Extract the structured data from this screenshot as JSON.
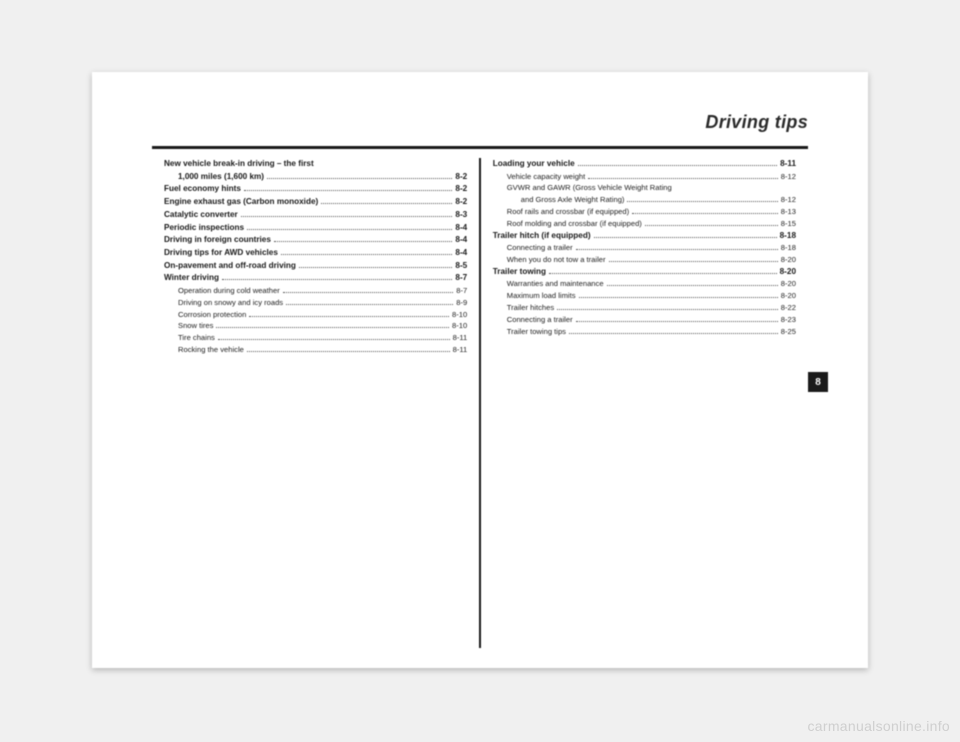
{
  "header": {
    "title": "Driving tips"
  },
  "sideTab": "8",
  "watermark": "carmanualsonline.info",
  "leftCol": [
    {
      "label": "New vehicle break-in driving – the first",
      "page": "",
      "cls": "",
      "nodots": true
    },
    {
      "label": "1,000 miles (1,600 km)",
      "page": "8-2",
      "cls": "wrap2"
    },
    {
      "label": "Fuel economy hints",
      "page": "8-2",
      "cls": ""
    },
    {
      "label": "Engine exhaust gas (Carbon monoxide)",
      "page": "8-2",
      "cls": ""
    },
    {
      "label": "Catalytic converter",
      "page": "8-3",
      "cls": ""
    },
    {
      "label": "Periodic inspections",
      "page": "8-4",
      "cls": ""
    },
    {
      "label": "Driving in foreign countries",
      "page": "8-4",
      "cls": ""
    },
    {
      "label": "Driving tips for AWD vehicles",
      "page": "8-4",
      "cls": ""
    },
    {
      "label": "On-pavement and off-road driving",
      "page": "8-5",
      "cls": ""
    },
    {
      "label": "Winter driving",
      "page": "8-7",
      "cls": ""
    },
    {
      "label": "Operation during cold weather",
      "page": "8-7",
      "cls": "sub"
    },
    {
      "label": "Driving on snowy and icy roads",
      "page": "8-9",
      "cls": "sub"
    },
    {
      "label": "Corrosion protection",
      "page": "8-10",
      "cls": "sub"
    },
    {
      "label": "Snow tires",
      "page": "8-10",
      "cls": "sub"
    },
    {
      "label": "Tire chains",
      "page": "8-11",
      "cls": "sub"
    },
    {
      "label": "Rocking the vehicle",
      "page": "8-11",
      "cls": "sub"
    }
  ],
  "rightCol": [
    {
      "label": "Loading your vehicle",
      "page": "8-11",
      "cls": ""
    },
    {
      "label": "Vehicle capacity weight",
      "page": "8-12",
      "cls": "sub"
    },
    {
      "label": "GVWR and GAWR (Gross Vehicle Weight Rating",
      "page": "",
      "cls": "sub",
      "nodots": true
    },
    {
      "label": "and Gross Axle Weight Rating)",
      "page": "8-12",
      "cls": "sub2"
    },
    {
      "label": "Roof rails and crossbar (if equipped)",
      "page": "8-13",
      "cls": "sub"
    },
    {
      "label": "Roof molding and crossbar (if equipped)",
      "page": "8-15",
      "cls": "sub"
    },
    {
      "label": "Trailer hitch (if equipped)",
      "page": "8-18",
      "cls": ""
    },
    {
      "label": "Connecting a trailer",
      "page": "8-18",
      "cls": "sub"
    },
    {
      "label": "When you do not tow a trailer",
      "page": "8-20",
      "cls": "sub"
    },
    {
      "label": "Trailer towing",
      "page": "8-20",
      "cls": ""
    },
    {
      "label": "Warranties and maintenance",
      "page": "8-20",
      "cls": "sub"
    },
    {
      "label": "Maximum load limits",
      "page": "8-20",
      "cls": "sub"
    },
    {
      "label": "Trailer hitches",
      "page": "8-22",
      "cls": "sub"
    },
    {
      "label": "Connecting a trailer",
      "page": "8-23",
      "cls": "sub"
    },
    {
      "label": "Trailer towing tips",
      "page": "8-25",
      "cls": "sub"
    }
  ]
}
